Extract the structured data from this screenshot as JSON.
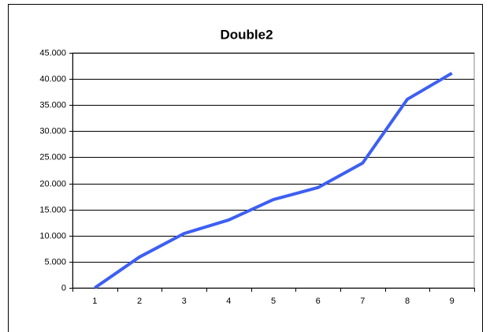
{
  "chart_data": {
    "type": "line",
    "title": "Double2",
    "categories": [
      "1",
      "2",
      "3",
      "4",
      "5",
      "6",
      "7",
      "8",
      "9"
    ],
    "series": [
      {
        "name": "Double2",
        "color": "#3d5ff2",
        "values": [
          0,
          5900,
          10400,
          13000,
          16900,
          19200,
          23900,
          36100,
          41100
        ]
      }
    ],
    "ylim": [
      0,
      45000
    ],
    "yticks": [
      0,
      {
        "value": 5000,
        "label": "5.000"
      },
      {
        "value": 10000,
        "label": "10.000"
      },
      {
        "value": 15000,
        "label": "15.000"
      },
      {
        "value": 20000,
        "label": "20.000"
      },
      {
        "value": 25000,
        "label": "25.000"
      },
      {
        "value": 30000,
        "label": "30.000"
      },
      {
        "value": 35000,
        "label": "35.000"
      },
      {
        "value": 40000,
        "label": "40.000"
      },
      {
        "value": 45000,
        "label": "45.000"
      }
    ],
    "grid": true
  }
}
